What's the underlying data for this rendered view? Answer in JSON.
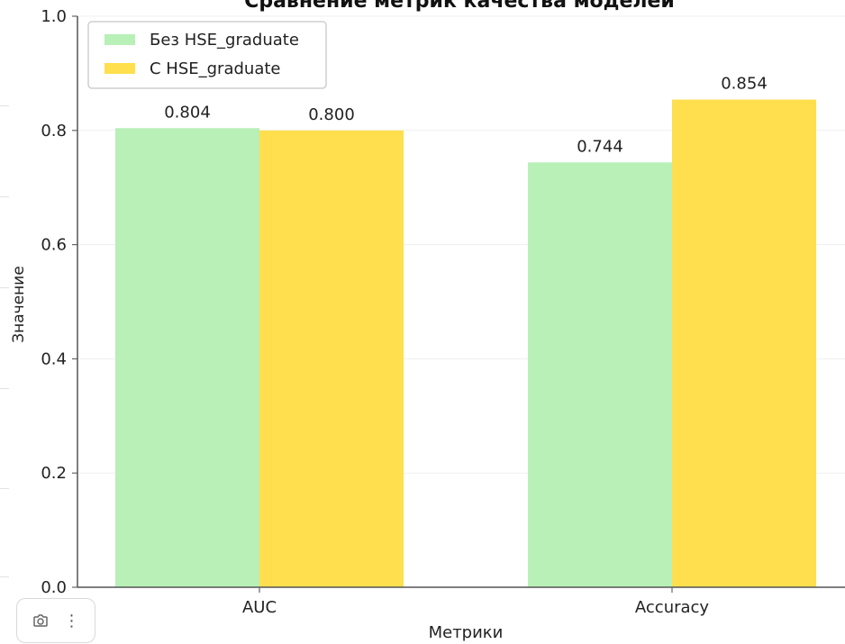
{
  "chart_data": {
    "type": "bar",
    "title": "Сравнение метрик качества моделей",
    "xlabel": "Метрики",
    "ylabel": "Значение",
    "ylim": [
      0.0,
      1.0
    ],
    "grid": "y",
    "legend_position": "top-left",
    "categories": [
      "AUC",
      "Accuracy"
    ],
    "yticks": [
      "0.0",
      "0.2",
      "0.4",
      "0.6",
      "0.8",
      "1.0"
    ],
    "series": [
      {
        "name": "Без HSE_graduate",
        "color": "#b8f0b8",
        "values": [
          0.804,
          0.744
        ],
        "labels": [
          "0.804",
          "0.744"
        ]
      },
      {
        "name": "С HSE_graduate",
        "color": "#ffdf4d",
        "values": [
          0.8,
          0.854
        ],
        "labels": [
          "0.800",
          "0.854"
        ]
      }
    ]
  },
  "toolbar": {
    "camera_icon": "camera-icon",
    "menu_icon": "more-vertical-icon",
    "menu_glyph": "⋮"
  }
}
